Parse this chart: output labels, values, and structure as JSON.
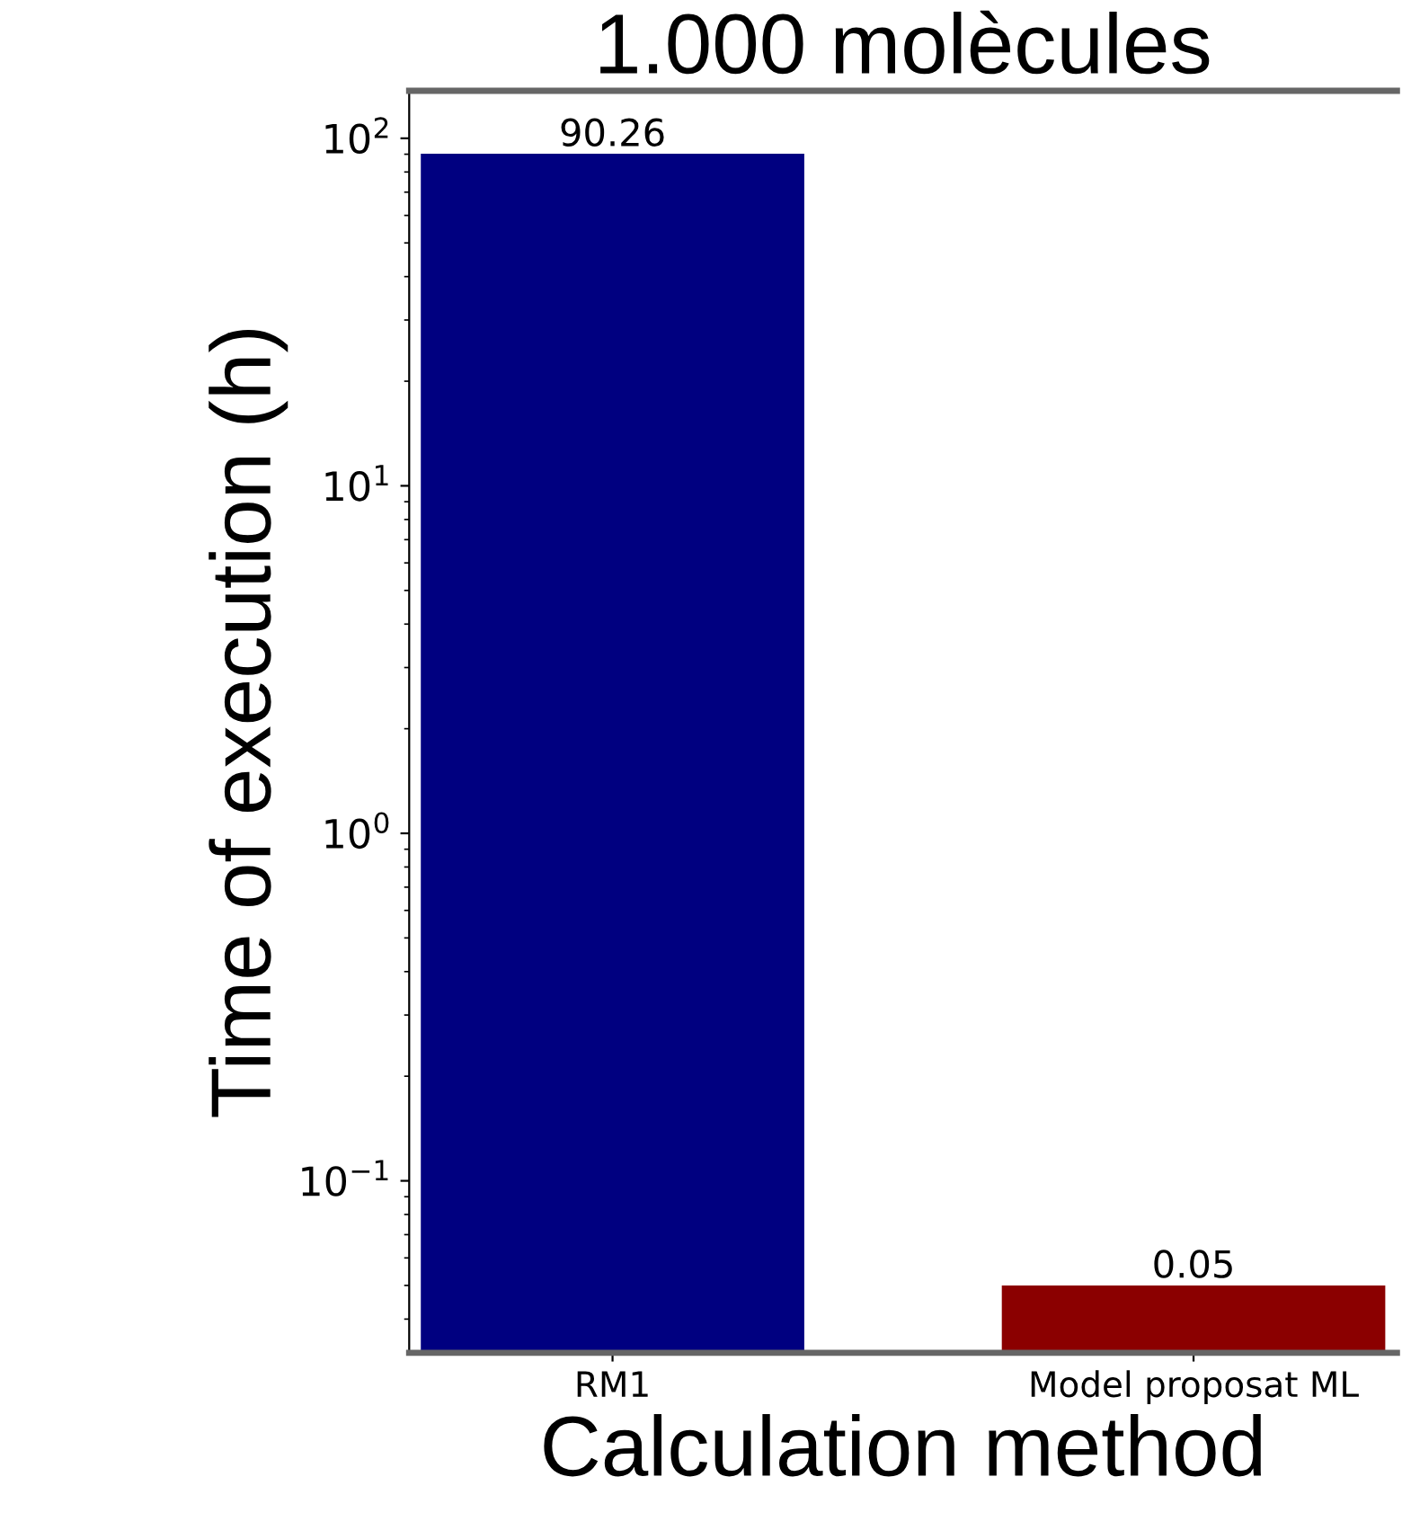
{
  "chart_data": {
    "type": "bar",
    "title": "1.000 molècules",
    "xlabel": "Calculation method",
    "ylabel": "Time of execution (h)",
    "categories": [
      "RM1",
      "Model proposat ML"
    ],
    "values": [
      90.26,
      0.05
    ],
    "colors": [
      "#000080",
      "#8b0000"
    ],
    "data_labels": true,
    "log": "y",
    "ylim": [
      0.032,
      137
    ],
    "yticks": [
      {
        "value": 0.1,
        "label": "10$^{−1}$"
      },
      {
        "value": 1,
        "label": "10$^{0}$"
      },
      {
        "value": 10,
        "label": "10$^{1}$"
      },
      {
        "value": 100,
        "label": "10$^{2}$"
      }
    ],
    "grid": false,
    "legend": false
  }
}
